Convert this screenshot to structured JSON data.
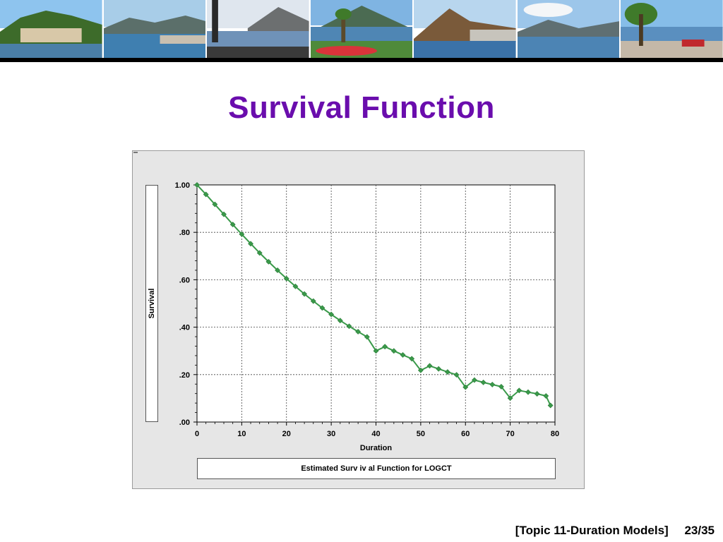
{
  "slide": {
    "title": "Survival Function",
    "footer_topic": "[Topic 11-Duration Models]",
    "footer_page": "23/35"
  },
  "banner": {
    "photos": [
      "lakeside-hill-town-photo",
      "lake-bay-photo",
      "lake-promenade-photo",
      "garden-lake-photo",
      "mountain-lake-photo",
      "lake-valley-photo",
      "lakefront-walkway-photo"
    ]
  },
  "colors": {
    "title": "#6a0dad",
    "curve": "#3a9a4a",
    "frame_bg": "#e6e6e6"
  },
  "chart_data": {
    "type": "line",
    "title": "",
    "xlabel": "Duration",
    "ylabel": "Survival",
    "caption": "Estimated Surv iv al Function for LOGCT",
    "xlim": [
      0,
      80
    ],
    "ylim": [
      0,
      1
    ],
    "x_ticks": [
      "0",
      "10",
      "20",
      "30",
      "40",
      "50",
      "60",
      "70",
      "80"
    ],
    "y_ticks": [
      ".00",
      ".20",
      ".40",
      ".60",
      ".80",
      "1.00"
    ],
    "grid": true,
    "marker": "diamond",
    "series": [
      {
        "x": [
          0,
          2,
          4,
          6,
          8,
          10,
          12,
          14,
          16,
          18,
          20,
          22,
          24,
          26,
          28,
          30,
          32,
          34,
          36,
          38,
          40,
          42,
          44,
          46,
          48,
          50,
          52,
          54,
          56,
          58,
          60,
          62,
          64,
          66,
          68,
          70,
          72,
          74,
          76,
          78,
          79
        ],
        "values": [
          1.0,
          0.96,
          0.918,
          0.876,
          0.833,
          0.792,
          0.752,
          0.713,
          0.676,
          0.64,
          0.605,
          0.572,
          0.54,
          0.51,
          0.481,
          0.454,
          0.428,
          0.404,
          0.381,
          0.359,
          0.3,
          0.318,
          0.3,
          0.283,
          0.267,
          0.218,
          0.237,
          0.224,
          0.211,
          0.199,
          0.147,
          0.177,
          0.167,
          0.158,
          0.149,
          0.101,
          0.133,
          0.126,
          0.119,
          0.11,
          0.07
        ]
      }
    ]
  }
}
